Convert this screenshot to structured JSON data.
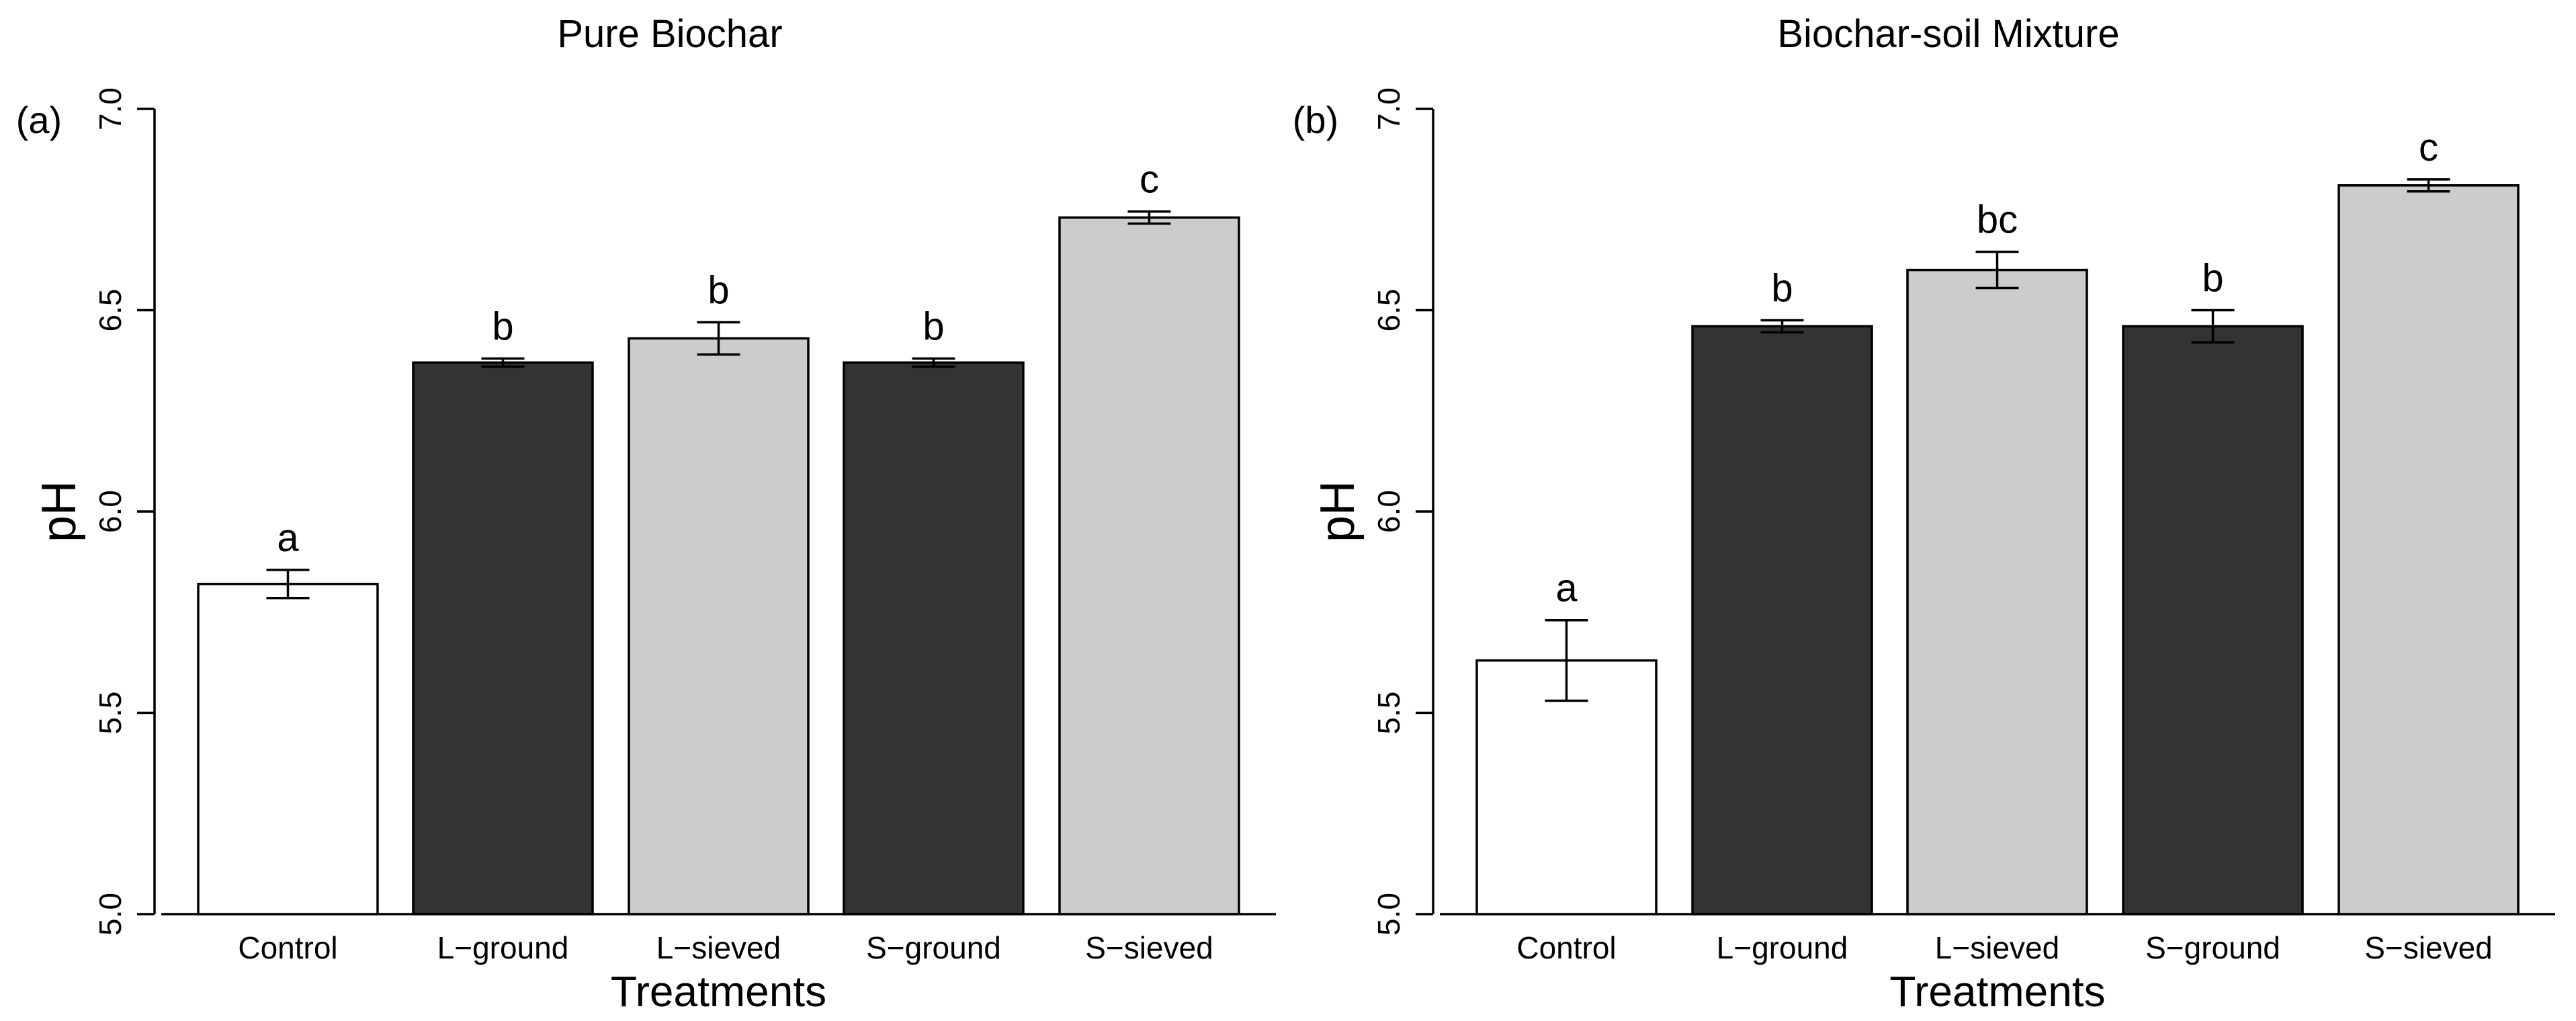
{
  "chart_data": [
    {
      "type": "bar",
      "panel_label": "(a)",
      "title": "Pure Biochar",
      "xlabel": "Treatments",
      "ylabel": "pH",
      "ylim": [
        5.0,
        7.0
      ],
      "yticks": [
        5.0,
        5.5,
        6.0,
        6.5,
        7.0
      ],
      "ytick_labels": [
        "5.0",
        "5.5",
        "6.0",
        "6.5",
        "7.0"
      ],
      "categories": [
        "Control",
        "L−ground",
        "L−sieved",
        "S−ground",
        "S−sieved"
      ],
      "values": [
        5.82,
        6.37,
        6.43,
        6.37,
        6.73
      ],
      "errors": [
        0.035,
        0.01,
        0.04,
        0.01,
        0.015
      ],
      "significance_letters": [
        "a",
        "b",
        "b",
        "b",
        "c"
      ],
      "bar_colors": [
        "#ffffff",
        "#333333",
        "#cccccc",
        "#333333",
        "#cccccc"
      ],
      "grid": false
    },
    {
      "type": "bar",
      "panel_label": "(b)",
      "title": "Biochar-soil Mixture",
      "xlabel": "Treatments",
      "ylabel": "pH",
      "ylim": [
        5.0,
        7.0
      ],
      "yticks": [
        5.0,
        5.5,
        6.0,
        6.5,
        7.0
      ],
      "ytick_labels": [
        "5.0",
        "5.5",
        "6.0",
        "6.5",
        "7.0"
      ],
      "categories": [
        "Control",
        "L−ground",
        "L−sieved",
        "S−ground",
        "S−sieved"
      ],
      "values": [
        5.63,
        6.46,
        6.6,
        6.46,
        6.81
      ],
      "errors": [
        0.1,
        0.015,
        0.045,
        0.04,
        0.015
      ],
      "significance_letters": [
        "a",
        "b",
        "bc",
        "b",
        "c"
      ],
      "bar_colors": [
        "#ffffff",
        "#333333",
        "#cccccc",
        "#333333",
        "#cccccc"
      ],
      "grid": false
    }
  ]
}
